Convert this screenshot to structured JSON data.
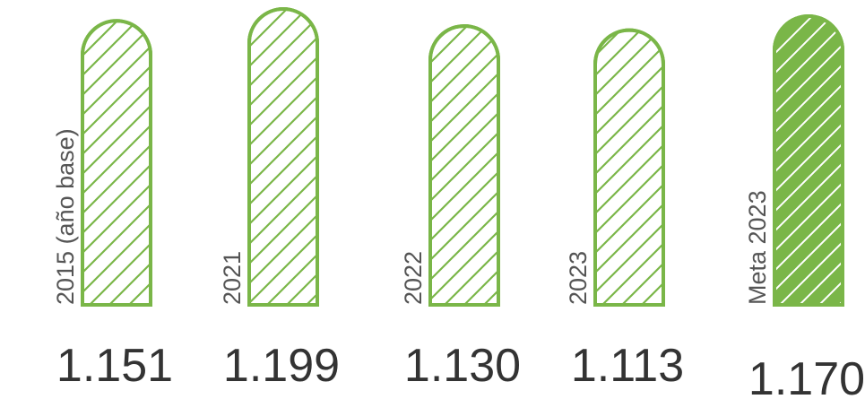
{
  "chart_data": {
    "type": "bar",
    "title": "",
    "xlabel": "",
    "ylabel": "",
    "categories": [
      "2015 (año base)",
      "2021",
      "2022",
      "2023",
      "Meta 2023"
    ],
    "values": [
      1151,
      1199,
      1130,
      1113,
      1170
    ],
    "value_labels": [
      "1.151",
      "1.199",
      "1.130",
      "1.113",
      "1.170"
    ],
    "ylim": [
      0,
      1200
    ],
    "grid": false,
    "legend": "none",
    "highlight_index": 4,
    "colors": {
      "bar_outline": "#7ab648",
      "bar_hatch": "#7ab648",
      "target_fill": "#7ab648",
      "target_hatch": "#ffffff",
      "category_text": "#555555",
      "value_text": "#333333"
    }
  }
}
